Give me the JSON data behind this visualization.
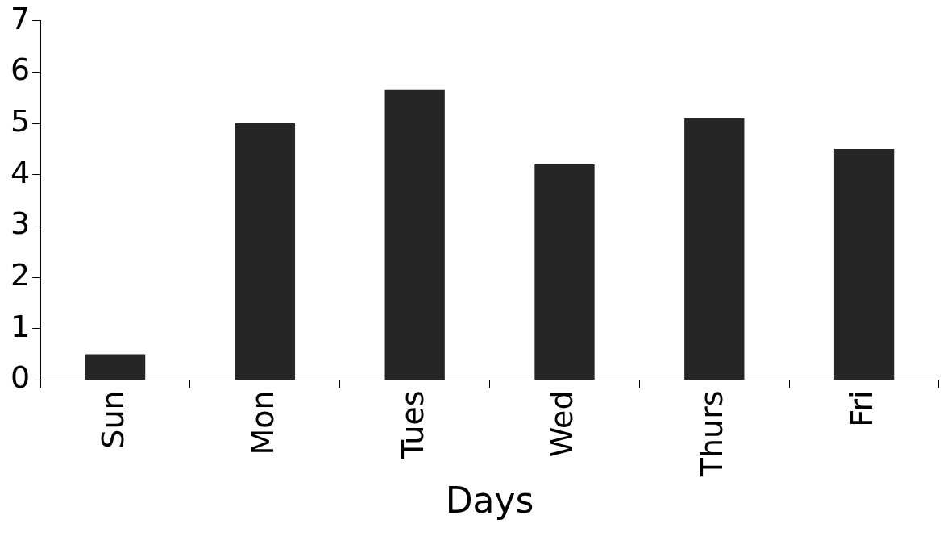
{
  "chart_data": {
    "type": "bar",
    "xlabel": "Days",
    "categories": [
      "Sun",
      "Mon",
      "Tues",
      "Wed",
      "Thurs",
      "Fri"
    ],
    "values": [
      0.5,
      5.0,
      5.65,
      4.2,
      5.1,
      4.5
    ],
    "color": "#262626",
    "ylim": [
      0,
      7
    ],
    "yticks": [
      0,
      1,
      2,
      3,
      4,
      5,
      6,
      7
    ],
    "grid": false,
    "legend": false
  }
}
